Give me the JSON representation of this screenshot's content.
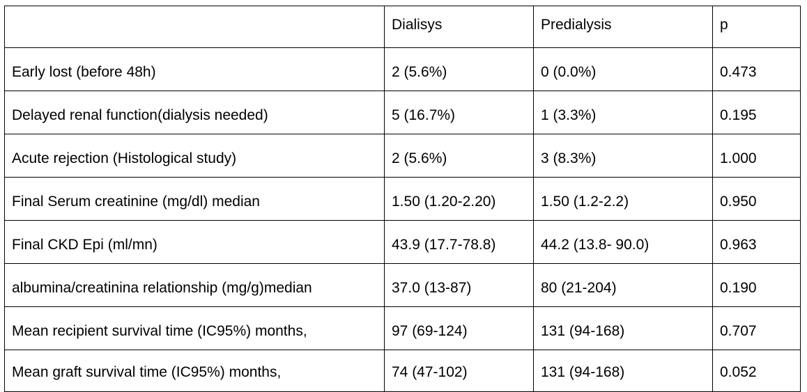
{
  "table": {
    "headers": [
      "",
      "Dialisys",
      "Predialysis",
      "p"
    ],
    "rows": [
      [
        "Early lost (before 48h)",
        "2 (5.6%)",
        "0 (0.0%)",
        "0.473"
      ],
      [
        "Delayed renal function(dialysis needed)",
        "5 (16.7%)",
        "1 (3.3%)",
        "0.195"
      ],
      [
        "Acute rejection (Histological study)",
        "2 (5.6%)",
        "3 (8.3%)",
        "1.000"
      ],
      [
        "Final Serum creatinine  (mg/dl) median",
        "1.50 (1.20-2.20)",
        "1.50 (1.2-2.2)",
        "0.950"
      ],
      [
        "Final CKD Epi (ml/mn)",
        "43.9 (17.7-78.8)",
        "44.2 (13.8- 90.0)",
        "0.963"
      ],
      [
        "albumina/creatinina relationship (mg/g)median",
        "37.0 (13-87)",
        "80 (21-204)",
        "0.190"
      ],
      [
        "Mean recipient survival time (IC95%) months,",
        "97 (69-124)",
        "131 (94-168)",
        "0.707"
      ],
      [
        "Mean graft survival time (IC95%) months,",
        "74 (47-102)",
        "131 (94-168)",
        "0.052"
      ]
    ]
  }
}
